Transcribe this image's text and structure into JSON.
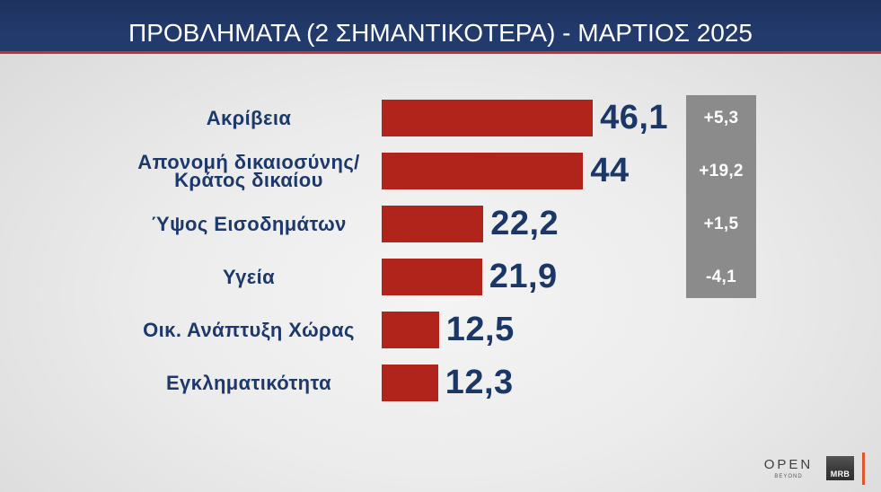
{
  "chart_data": {
    "type": "bar",
    "orientation": "horizontal",
    "title": "ΠΡΟΒΛΗΜΑΤΑ (2 ΣΗΜΑΝΤΙΚΟΤΕΡΑ) - ΜΑΡΤΙΟΣ 2025",
    "categories": [
      "Ακρίβεια",
      "Απονομή δικαιοσύνης/\nΚράτος δικαίου",
      "Ύψος Εισοδημάτων",
      "Υγεία",
      "Οικ. Ανάπτυξη Χώρας",
      "Εγκληματικότητα"
    ],
    "values": [
      46.1,
      44,
      22.2,
      21.9,
      12.5,
      12.3
    ],
    "data_labels": [
      "46,1",
      "44",
      "22,2",
      "21,9",
      "12,5",
      "12,3"
    ],
    "change_labels": [
      "+5,3",
      "+19,2",
      "+1,5",
      "-4,1"
    ],
    "grid": false,
    "legend": "none"
  },
  "colors": {
    "header": "#223a6c",
    "accent": "#c8322a",
    "bar": "#b0241b",
    "label_text": "#1d396b",
    "value_text": "#1b3767",
    "change_panel": "#8b8b8b",
    "change_text": "#ffffff"
  },
  "branding": {
    "channel_logo": "OPEN",
    "channel_tagline": "BEYOND",
    "pollster_logo": "MRB"
  }
}
